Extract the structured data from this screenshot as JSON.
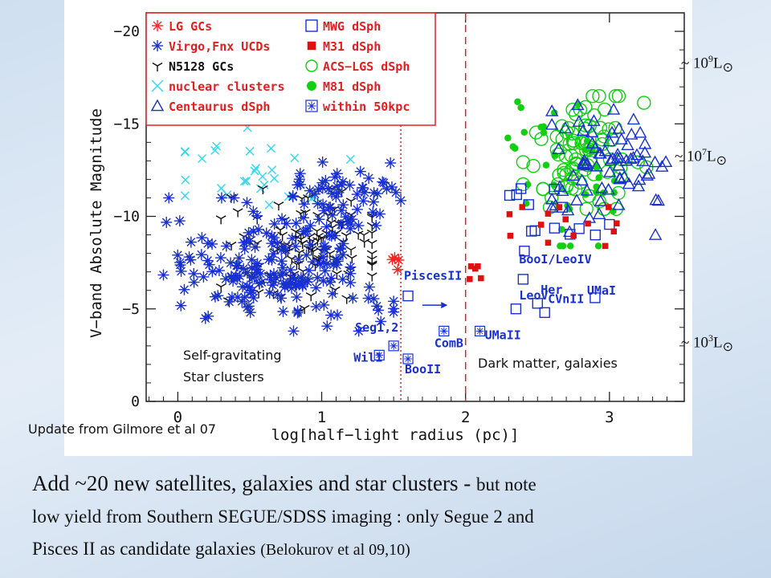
{
  "chart_data": {
    "type": "scatter",
    "xlabel": "log[half−light radius (pc)]",
    "ylabel": "V−band Absolute Magnitude",
    "xlim": [
      -0.22,
      3.52
    ],
    "ylim": [
      0,
      -21
    ],
    "x_ticks": [
      "0",
      "1",
      "2",
      "3"
    ],
    "y_ticks": [
      "−20",
      "−15",
      "−10",
      "−5",
      "0"
    ],
    "legend": {
      "position": "top-left",
      "entries": [
        {
          "label": "LG GCs",
          "marker": "star",
          "color": "#ff2020"
        },
        {
          "label": "Virgo,Fnx UCDs",
          "marker": "asterisk",
          "color": "#1830d0"
        },
        {
          "label": "N5128 GCs",
          "marker": "tri",
          "color": "#111111"
        },
        {
          "label": "nuclear clusters",
          "marker": "x",
          "color": "#30d8f0"
        },
        {
          "label": "Centaurus dSph",
          "marker": "triangle",
          "color": "#1830d0"
        },
        {
          "label": "MWG dSph",
          "marker": "square-open",
          "color": "#1830d0"
        },
        {
          "label": "M31 dSph",
          "marker": "square-filled",
          "color": "#e01010"
        },
        {
          "label": "ACS−LGS dSph",
          "marker": "circle-open",
          "color": "#10d010"
        },
        {
          "label": "M81 dSph",
          "marker": "circle-filled",
          "color": "#10d010"
        },
        {
          "label": "within 50kpc",
          "marker": "boxed-asterisk",
          "color": "#1830d0"
        }
      ]
    },
    "reference_lines": [
      {
        "x": 1.55,
        "style": "dotted",
        "color": "#e02020"
      },
      {
        "x": 2.0,
        "style": "dashed",
        "color": "#e02020"
      }
    ],
    "named_points": [
      {
        "label": "PiscesII",
        "x": 1.6,
        "y": -5.7
      },
      {
        "label": "BooI/LeoIV",
        "x": 2.4,
        "y": -6.6
      },
      {
        "label": "Her",
        "x": 2.5,
        "y": -5.3
      },
      {
        "label": "LeoV",
        "x": 2.35,
        "y": -5.0
      },
      {
        "label": "CVnII",
        "x": 2.55,
        "y": -4.8
      },
      {
        "label": "UMaII",
        "x": 2.1,
        "y": -3.8
      },
      {
        "label": "UMaI",
        "x": 2.9,
        "y": -5.6
      },
      {
        "label": "Seg1,2",
        "x": 1.5,
        "y": -3.0
      },
      {
        "label": "Wil1",
        "x": 1.4,
        "y": -2.5
      },
      {
        "label": "BooII",
        "x": 1.6,
        "y": -2.3
      },
      {
        "label": "ComB",
        "x": 1.85,
        "y": -3.8
      }
    ]
  },
  "labels": {
    "self_grav_line1": "Self-gravitating",
    "self_grav_line2": "Star clusters",
    "dark_matter": "Dark matter, galaxies",
    "update_note": "Update from Gilmore et al 07"
  },
  "luminosity_markers": [
    {
      "prefix": "~ 10",
      "exp": "9",
      "suffix": "L",
      "sun": "⊙"
    },
    {
      "prefix": "~ 10",
      "exp": "7",
      "suffix": "L",
      "sun": "⊙"
    },
    {
      "prefix": "~ 10",
      "exp": "3",
      "suffix": "L",
      "sun": "⊙"
    }
  ],
  "caption": {
    "p1": "Add ~20 new satellites, galaxies and star clusters - ",
    "p2": "but note",
    "p3": "low yield from Southern SEGUE/SDSS imaging : only Segue 2 and",
    "p4": "Pisces II as candidate galaxies ",
    "p5": "(Belokurov et al 09,10)"
  }
}
